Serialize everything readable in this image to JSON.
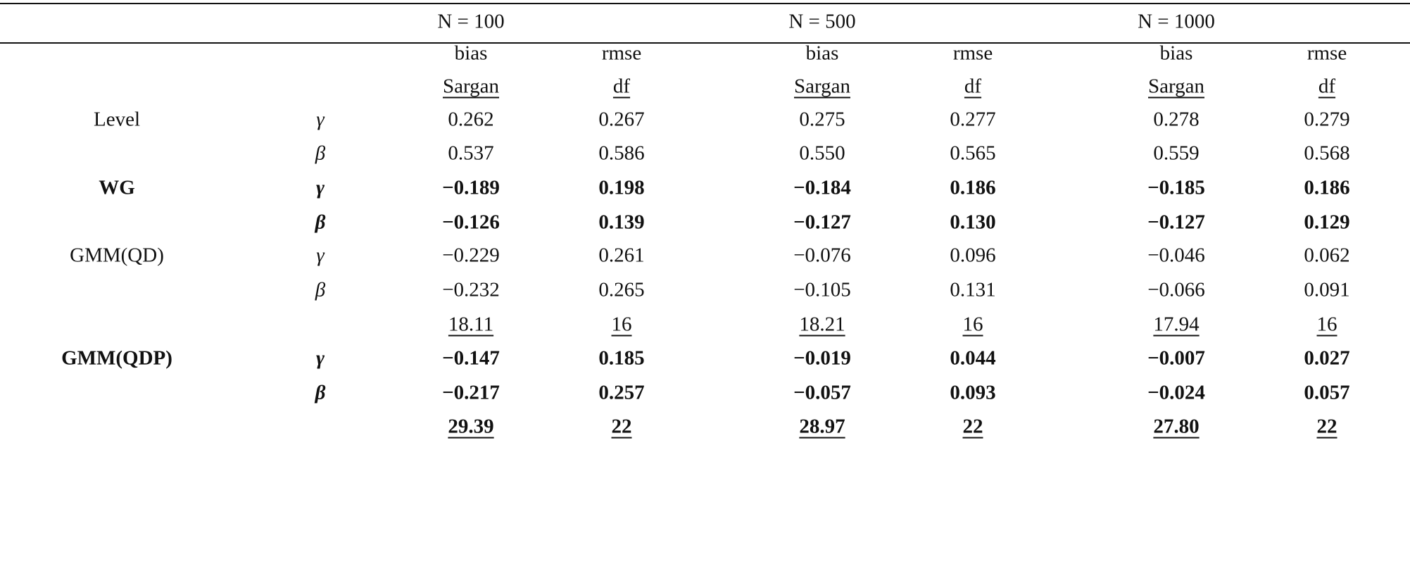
{
  "table": {
    "groups": [
      "N = 100",
      "N = 500",
      "N = 1000"
    ],
    "subheaders": [
      "bias",
      "rmse",
      "bias",
      "rmse",
      "bias",
      "rmse"
    ],
    "subheaders2": [
      "Sargan",
      "df",
      "Sargan",
      "df",
      "Sargan",
      "df"
    ],
    "rows": [
      {
        "method": "Level",
        "param": "γ",
        "values": [
          "0.262",
          "0.267",
          "0.275",
          "0.277",
          "0.278",
          "0.279"
        ],
        "bold": false,
        "underline": false
      },
      {
        "method": "",
        "param": "β",
        "values": [
          "0.537",
          "0.586",
          "0.550",
          "0.565",
          "0.559",
          "0.568"
        ],
        "bold": false,
        "underline": false
      },
      {
        "method": "WG",
        "param": "γ",
        "values": [
          "−0.189",
          "0.198",
          "−0.184",
          "0.186",
          "−0.185",
          "0.186"
        ],
        "bold": true,
        "underline": false
      },
      {
        "method": "",
        "param": "β",
        "values": [
          "−0.126",
          "0.139",
          "−0.127",
          "0.130",
          "−0.127",
          "0.129"
        ],
        "bold": true,
        "underline": false
      },
      {
        "method": "GMM(QD)",
        "param": "γ",
        "values": [
          "−0.229",
          "0.261",
          "−0.076",
          "0.096",
          "−0.046",
          "0.062"
        ],
        "bold": false,
        "underline": false
      },
      {
        "method": "",
        "param": "β",
        "values": [
          "−0.232",
          "0.265",
          "−0.105",
          "0.131",
          "−0.066",
          "0.091"
        ],
        "bold": false,
        "underline": false
      },
      {
        "method": "",
        "param": "",
        "values": [
          "18.11",
          "16",
          "18.21",
          "16",
          "17.94",
          "16"
        ],
        "bold": false,
        "underline": true
      },
      {
        "method": "GMM(QDP)",
        "param": "γ",
        "values": [
          "−0.147",
          "0.185",
          "−0.019",
          "0.044",
          "−0.007",
          "0.027"
        ],
        "bold": true,
        "underline": false
      },
      {
        "method": "",
        "param": "β",
        "values": [
          "−0.217",
          "0.257",
          "−0.057",
          "0.093",
          "−0.024",
          "0.057"
        ],
        "bold": true,
        "underline": false
      },
      {
        "method": "",
        "param": "",
        "values": [
          "29.39",
          "22",
          "28.97",
          "22",
          "27.80",
          "22"
        ],
        "bold": true,
        "underline": true
      }
    ]
  }
}
